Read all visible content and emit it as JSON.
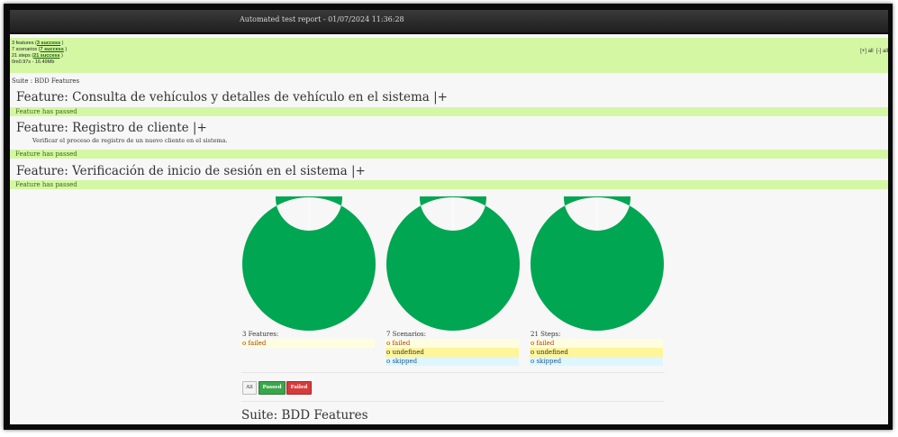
{
  "header": {
    "title": "Automated test report - 01/07/2024 11:36:28"
  },
  "summary": {
    "features": {
      "text": "3 features (",
      "link": "3 success",
      "end": " )"
    },
    "scenarios": {
      "text": "7 scenarios (",
      "link": "7 success",
      "end": " )"
    },
    "steps": {
      "text": "21 steps (",
      "link": "21 success",
      "end": " )"
    },
    "timing": "0m0.97s - 16.49Mb",
    "expand_all": "[+] all",
    "collapse_all": "[-] all"
  },
  "suite_label": "Suite : BDD Features",
  "features": [
    {
      "title": "Feature: Consulta de vehículos y detalles de vehículo en el sistema |+",
      "description": "",
      "status": "Feature has passed"
    },
    {
      "title": "Feature: Registro de cliente |+",
      "description": "Verificar el proceso de registro de un nuevo cliente en el sistema.",
      "status": "Feature has passed"
    },
    {
      "title": "Feature: Verificación de inicio de sesión en el sistema |+",
      "description": "",
      "status": "Feature has passed"
    }
  ],
  "charts": {
    "passed_color": "#00a651",
    "chart_data": [
      {
        "type": "pie",
        "categories": [
          "passed",
          "failed"
        ],
        "values": [
          3,
          0
        ]
      },
      {
        "type": "pie",
        "categories": [
          "passed",
          "failed",
          "undefined",
          "skipped"
        ],
        "values": [
          7,
          0,
          0,
          0
        ]
      },
      {
        "type": "pie",
        "categories": [
          "passed",
          "failed",
          "undefined",
          "skipped"
        ],
        "values": [
          21,
          0,
          0,
          0
        ]
      }
    ]
  },
  "stats": [
    {
      "heading": "3 Features:",
      "rows": [
        {
          "cls": "failed",
          "label": "o failed"
        }
      ]
    },
    {
      "heading": "7 Scenarios:",
      "rows": [
        {
          "cls": "failed",
          "label": "o failed"
        },
        {
          "cls": "undef",
          "label": "o undefined"
        },
        {
          "cls": "skip",
          "label": "o skipped"
        }
      ]
    },
    {
      "heading": "21 Steps:",
      "rows": [
        {
          "cls": "failed",
          "label": "o failed"
        },
        {
          "cls": "undef",
          "label": "o undefined"
        },
        {
          "cls": "skip",
          "label": "o skipped"
        }
      ]
    }
  ],
  "filters": {
    "all": "All",
    "passed": "Passed",
    "failed": "Failed"
  },
  "suite_footer": "Suite: BDD Features"
}
